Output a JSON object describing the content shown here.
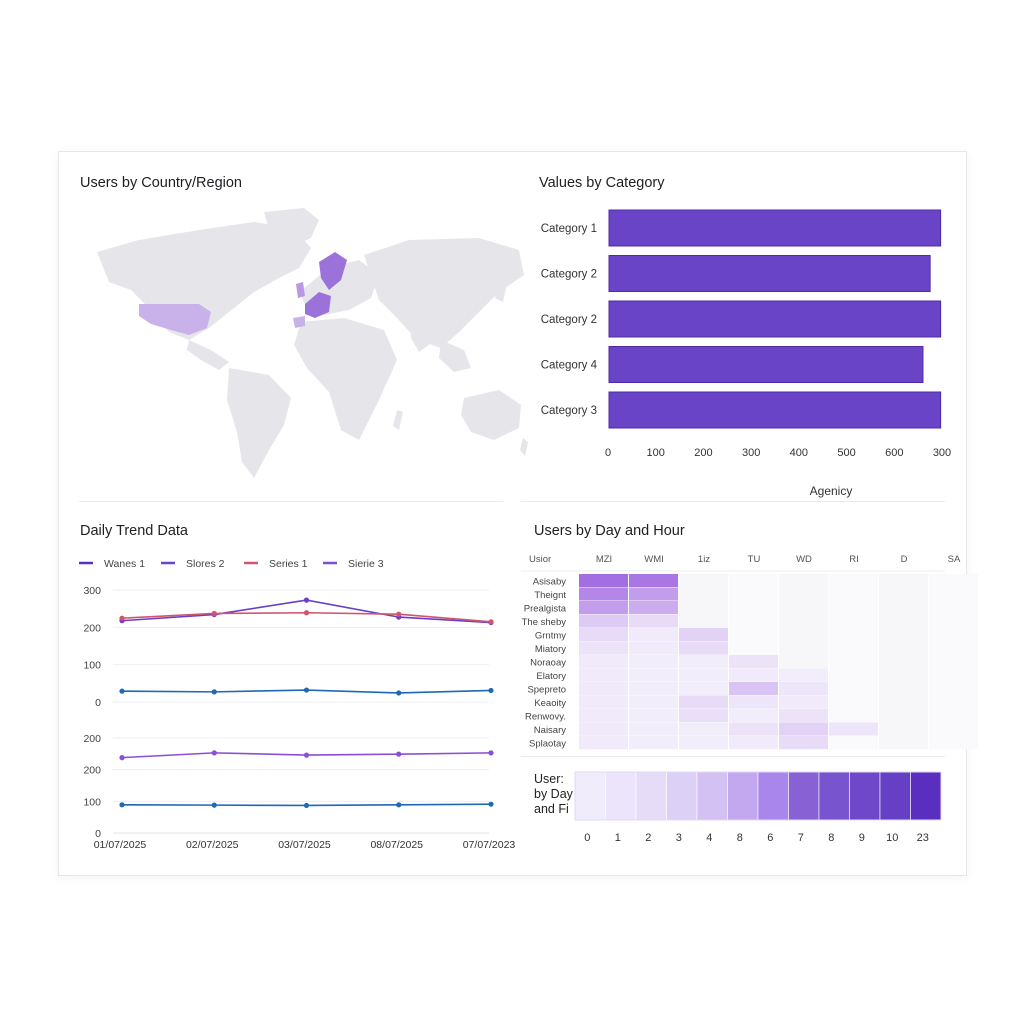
{
  "colors": {
    "accent": "#6a44c6",
    "map_land": "#e6e6ea",
    "map_high": "#9b72d9",
    "map_low": "#c9b2ea",
    "series_purple": "#6b3fc9",
    "series_red": "#d1556f",
    "series_blue": "#1f68b5"
  },
  "map": {
    "title": "Users by Country/Region",
    "highlighted": [
      "United States",
      "Scandinavia",
      "France",
      "Germany",
      "United Kingdom",
      "Spain"
    ]
  },
  "bar": {
    "title": "Values by Category",
    "xlabel": "Agenicy"
  },
  "line": {
    "title": "Daily Trend Data"
  },
  "heatmap": {
    "title": "Users by Day and Hour",
    "corner_label": "Usior"
  },
  "legend_bar": {
    "label_lines": [
      "User:",
      "by Day",
      "and Fi"
    ]
  },
  "chart_data": [
    {
      "type": "bar",
      "orientation": "horizontal",
      "title": "Values by Category",
      "categories": [
        "Category 1",
        "Category 2",
        "Category 2",
        "Category 4",
        "Category 3"
      ],
      "values": [
        695,
        673,
        695,
        658,
        695
      ],
      "x_tick_labels": [
        "0",
        "100",
        "200",
        "300",
        "400",
        "500",
        "600",
        "300"
      ],
      "xlabel": "Agenicy",
      "grid": false
    },
    {
      "type": "line",
      "title": "Daily Trend Data",
      "legend": [
        "Wanes 1",
        "Slores 2",
        "Series 1",
        "Sierie 3"
      ],
      "legend_colors": [
        "#5a2fc0",
        "#6a44c6",
        "#d1556f",
        "#7b4fd0"
      ],
      "panels": [
        {
          "y_ticks": [
            "300",
            "200",
            "100",
            "0"
          ],
          "ylim": [
            -10,
            300
          ],
          "series": [
            {
              "values": [
                215,
                232,
                272,
                225,
                210
              ],
              "color": "#6b3fc9"
            },
            {
              "values": [
                222,
                235,
                237,
                233,
                212
              ],
              "color": "#d1556f"
            },
            {
              "values": [
                20,
                18,
                23,
                15,
                22
              ],
              "color": "#1f68b5"
            }
          ]
        },
        {
          "y_ticks": [
            "200",
            "200",
            "100",
            "0"
          ],
          "ylim": [
            0,
            300
          ],
          "series": [
            {
              "values": [
                238,
                253,
                246,
                249,
                253
              ],
              "color": "#8a4fd6"
            },
            {
              "values": [
                89,
                88,
                87,
                89,
                91
              ],
              "color": "#1f68b5"
            }
          ]
        }
      ],
      "x_labels": [
        "01/07/2025",
        "02/07/2025",
        "03/07/2025",
        "08/07/2025",
        "07/07/2023"
      ]
    },
    {
      "type": "heatmap",
      "title": "Users by Day and Hour",
      "columns": [
        "MZI",
        "WMI",
        "1iz",
        "TU",
        "WD",
        "RI",
        "D",
        "SA"
      ],
      "rows": [
        "Asisaby",
        "Theignt",
        "Prealgista",
        "The sheby",
        "Grntmy",
        "Miatory",
        "Noraoay",
        "Elatory",
        "Spepreto",
        "Keaoity",
        "Renwovy.",
        "Naisary",
        "Splaotay"
      ],
      "values": [
        [
          0.85,
          0.8,
          0,
          0,
          0,
          0,
          0,
          0
        ],
        [
          0.7,
          0.55,
          0,
          0,
          0,
          0,
          0,
          0
        ],
        [
          0.55,
          0.45,
          0,
          0,
          0,
          0,
          0,
          0
        ],
        [
          0.25,
          0.15,
          0,
          0,
          0,
          0,
          0,
          0
        ],
        [
          0.15,
          0.05,
          0.2,
          0,
          0,
          0,
          0,
          0
        ],
        [
          0.1,
          0.05,
          0.15,
          0,
          0,
          0,
          0,
          0
        ],
        [
          0.05,
          0.03,
          0.03,
          0.1,
          0,
          0,
          0,
          0
        ],
        [
          0.05,
          0.03,
          0.03,
          0.05,
          0.03,
          0,
          0,
          0
        ],
        [
          0.05,
          0.03,
          0.03,
          0.3,
          0.08,
          0,
          0,
          0
        ],
        [
          0.05,
          0.03,
          0.15,
          0.08,
          0.05,
          0,
          0,
          0
        ],
        [
          0.05,
          0.03,
          0.12,
          0.03,
          0.1,
          0,
          0,
          0
        ],
        [
          0.05,
          0.03,
          0.03,
          0.1,
          0.2,
          0.08,
          0,
          0
        ],
        [
          0.05,
          0.03,
          0.03,
          0.05,
          0.15,
          0,
          0,
          0
        ]
      ]
    },
    {
      "type": "heatmap",
      "title": "User: by Day and Fi",
      "categories": [
        "0",
        "1",
        "2",
        "3",
        "4",
        "8",
        "6",
        "7",
        "8",
        "9",
        "10",
        "23"
      ],
      "colors": [
        "#f1ecfb",
        "#ece4fa",
        "#e6dcf8",
        "#ddd0f6",
        "#d3c1f3",
        "#c3a8ef",
        "#a886ec",
        "#8862d4",
        "#7854cf",
        "#6e48c9",
        "#6540c4",
        "#5a2fc0"
      ]
    }
  ]
}
